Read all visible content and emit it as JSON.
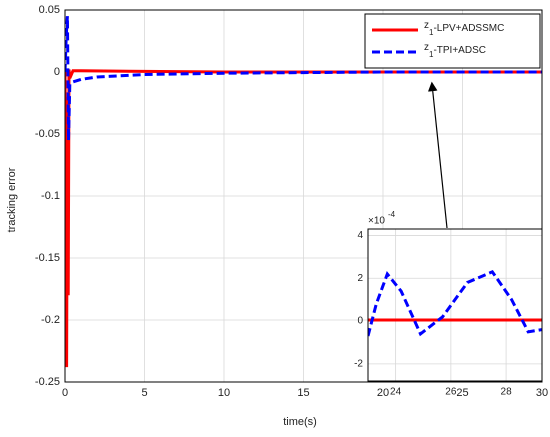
{
  "chart_data": [
    {
      "type": "line",
      "xlabel": "time(s)",
      "ylabel": "tracking error",
      "xlim": [
        0,
        30
      ],
      "xticks": [
        0,
        5,
        10,
        15,
        20,
        25,
        30
      ],
      "ylim": [
        -0.25,
        0.05
      ],
      "yticks": [
        0.05,
        0,
        -0.05,
        -0.1,
        -0.15,
        -0.2,
        -0.25
      ],
      "grid": true,
      "legend": "upper right",
      "series": [
        {
          "name": "z1-LPV+ADSSMC",
          "color": "#ff0000",
          "style": "solid",
          "x": [
            0,
            0.05,
            0.1,
            0.15,
            0.2,
            0.25,
            0.3,
            0.5,
            1,
            5,
            10,
            20,
            30
          ],
          "values": [
            0,
            -0.1,
            -0.238,
            -0.02,
            -0.18,
            0.002,
            -0.005,
            0.001,
            0.001,
            0.0005,
            0,
            0,
            0
          ]
        },
        {
          "name": "z1-TPI+ADSC",
          "color": "#0000ff",
          "style": "dashed",
          "x": [
            0,
            0.08,
            0.15,
            0.22,
            0.3,
            0.5,
            1,
            2,
            5,
            10,
            15,
            20,
            30
          ],
          "values": [
            0,
            0.03,
            0.045,
            -0.055,
            -0.01,
            -0.008,
            -0.006,
            -0.004,
            -0.002,
            -0.001,
            -0.0005,
            0,
            0
          ]
        }
      ]
    },
    {
      "type": "line",
      "scale_label": "×10",
      "scale_exponent": "-4",
      "xlim": [
        23,
        29.3
      ],
      "xticks": [
        24,
        26,
        28
      ],
      "ylim": [
        -2.8,
        4.3
      ],
      "yticks": [
        4,
        2,
        0,
        -2
      ],
      "grid": true,
      "series": [
        {
          "color": "#ff0000",
          "style": "solid",
          "x": [
            23,
            29.3
          ],
          "values": [
            0.05,
            0.05
          ]
        },
        {
          "color": "#0000ff",
          "style": "dashed",
          "x": [
            23,
            23.3,
            23.7,
            24.2,
            24.9,
            25.7,
            26.6,
            27.5,
            28.2,
            28.8,
            29.3
          ],
          "values": [
            -0.7,
            0.8,
            2.2,
            1.4,
            -0.6,
            0.2,
            1.8,
            2.3,
            1.0,
            -0.5,
            -0.4
          ]
        }
      ]
    }
  ]
}
